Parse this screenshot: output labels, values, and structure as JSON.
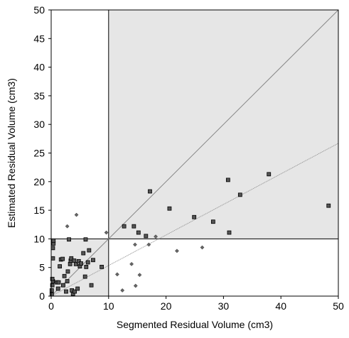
{
  "chart_data": {
    "type": "scatter",
    "title": "",
    "xlabel": "Segmented Residual Volume (cm3)",
    "ylabel": "Estimated Residual Volume (cm3)",
    "xlim": [
      0,
      50
    ],
    "ylim": [
      0,
      50
    ],
    "xticks": [
      "0",
      "10",
      "20",
      "30",
      "40",
      "50"
    ],
    "yticks": [
      "0",
      "5",
      "10",
      "15",
      "20",
      "25",
      "30",
      "35",
      "40",
      "45",
      "50"
    ],
    "grid": false,
    "shaded_regions": [
      {
        "x": [
          0,
          10
        ],
        "y": [
          0,
          10
        ]
      },
      {
        "x": [
          10,
          50
        ],
        "y": [
          10,
          50
        ]
      }
    ],
    "reference_lines": [
      {
        "from": [
          0,
          0
        ],
        "to": [
          50,
          50
        ],
        "style": "identity"
      },
      {
        "from": [
          0,
          0
        ],
        "to": [
          50,
          26.7
        ],
        "style": "regression"
      }
    ],
    "colors": {
      "square_marker": "#555555",
      "diamond_marker": "#666666",
      "region_fill": "#e6e6e6",
      "line": "#888888"
    },
    "series": [
      {
        "marker": "square",
        "points": [
          [
            0.1,
            0.3
          ],
          [
            0.1,
            1.0
          ],
          [
            0.2,
            1.9
          ],
          [
            0.3,
            2.6
          ],
          [
            0.2,
            3.0
          ],
          [
            0.3,
            6.6
          ],
          [
            0.3,
            8.4
          ],
          [
            0.4,
            9.2
          ],
          [
            0.4,
            9.7
          ],
          [
            1.0,
            2.4
          ],
          [
            1.2,
            1.3
          ],
          [
            1.3,
            2.4
          ],
          [
            1.5,
            5.2
          ],
          [
            1.7,
            6.4
          ],
          [
            2.0,
            6.5
          ],
          [
            2.1,
            1.9
          ],
          [
            2.3,
            3.5
          ],
          [
            2.6,
            0.8
          ],
          [
            2.8,
            2.6
          ],
          [
            2.9,
            4.3
          ],
          [
            3.1,
            9.9
          ],
          [
            3.3,
            5.6
          ],
          [
            3.4,
            6.2
          ],
          [
            3.5,
            6.6
          ],
          [
            3.6,
            1.0
          ],
          [
            3.8,
            0.4
          ],
          [
            4.0,
            6.2
          ],
          [
            4.1,
            0.8
          ],
          [
            4.3,
            5.6
          ],
          [
            4.6,
            1.3
          ],
          [
            4.8,
            6.1
          ],
          [
            5.0,
            5.2
          ],
          [
            5.2,
            5.7
          ],
          [
            5.6,
            7.5
          ],
          [
            5.9,
            3.4
          ],
          [
            6.0,
            9.9
          ],
          [
            6.1,
            5.1
          ],
          [
            6.4,
            5.9
          ],
          [
            6.6,
            8.0
          ],
          [
            7.0,
            1.9
          ],
          [
            7.3,
            6.3
          ],
          [
            8.8,
            5.1
          ],
          [
            12.7,
            12.2
          ],
          [
            14.4,
            12.2
          ],
          [
            15.2,
            11.1
          ],
          [
            16.5,
            10.5
          ],
          [
            17.2,
            18.3
          ],
          [
            20.6,
            15.3
          ],
          [
            24.9,
            13.8
          ],
          [
            28.2,
            13.0
          ],
          [
            30.8,
            20.3
          ],
          [
            31.0,
            11.1
          ],
          [
            32.9,
            17.7
          ],
          [
            37.9,
            21.3
          ],
          [
            48.3,
            15.8
          ]
        ]
      },
      {
        "marker": "diamond",
        "points": [
          [
            2.8,
            12.2
          ],
          [
            4.4,
            14.2
          ],
          [
            9.6,
            11.1
          ],
          [
            11.5,
            3.8
          ],
          [
            12.4,
            1.0
          ],
          [
            14.0,
            5.6
          ],
          [
            14.6,
            9.0
          ],
          [
            14.7,
            1.8
          ],
          [
            15.4,
            3.7
          ],
          [
            17.0,
            9.0
          ],
          [
            18.2,
            10.4
          ],
          [
            21.9,
            7.9
          ],
          [
            26.3,
            8.5
          ]
        ]
      }
    ]
  }
}
